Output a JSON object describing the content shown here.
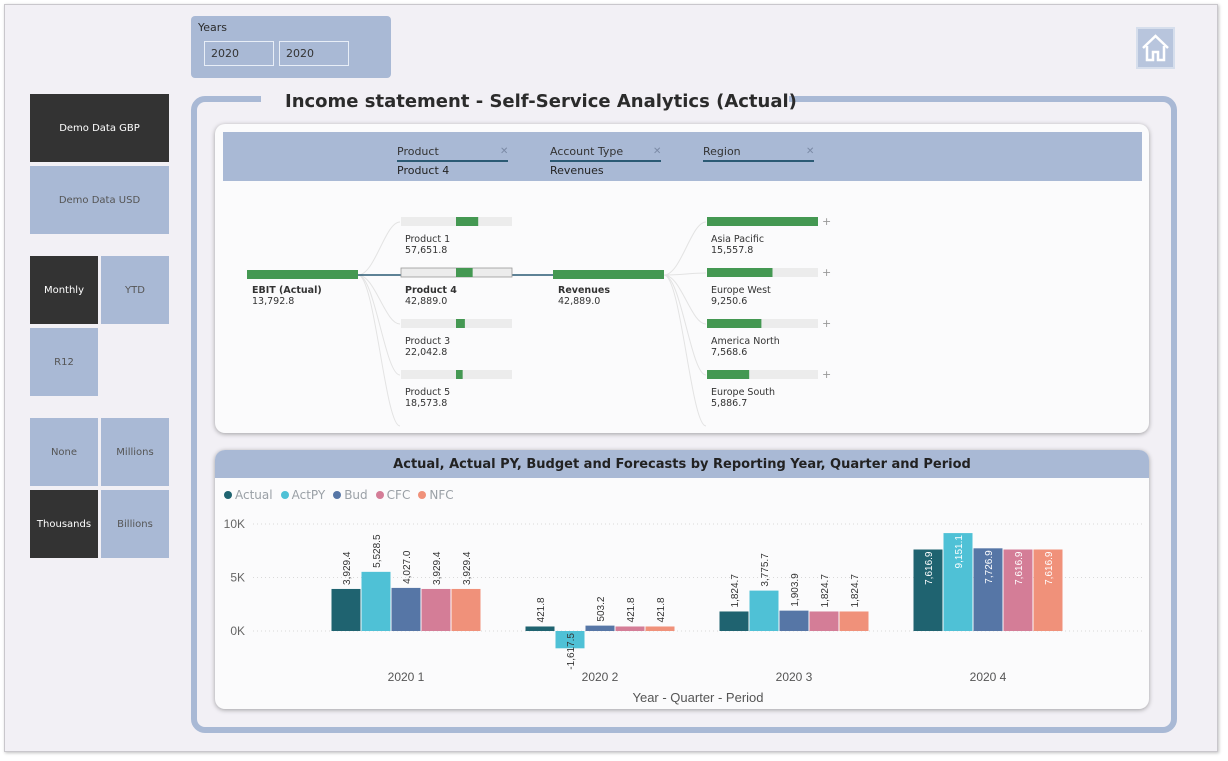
{
  "years_slicer": {
    "label": "Years",
    "from": "2020",
    "to": "2020"
  },
  "left_buttons": {
    "gbp": "Demo Data GBP",
    "usd": "Demo Data USD",
    "monthly": "Monthly",
    "ytd": "YTD",
    "r12": "R12",
    "none": "None",
    "millions": "Millions",
    "thousands": "Thousands",
    "billions": "Billions"
  },
  "page_title": "Income statement - Self-Service Analytics (Actual)",
  "tree": {
    "headers": [
      {
        "label": "Product",
        "value": "Product 4"
      },
      {
        "label": "Account Type",
        "value": "Revenues"
      },
      {
        "label": "Region",
        "value": ""
      }
    ],
    "root": {
      "label": "EBIT (Actual)",
      "value": "13,792.8"
    },
    "products": [
      {
        "label": "Product 1",
        "value": "57,651.8",
        "fraction": 0.2
      },
      {
        "label": "Product 4",
        "value": "42,889.0",
        "fraction": 0.15
      },
      {
        "label": "Product 3",
        "value": "22,042.8",
        "fraction": 0.08
      },
      {
        "label": "Product 5",
        "value": "18,573.8",
        "fraction": 0.06
      }
    ],
    "account": {
      "label": "Revenues",
      "value": "42,889.0"
    },
    "regions": [
      {
        "label": "Asia Pacific",
        "value": "15,557.8",
        "fraction": 1.0
      },
      {
        "label": "Europe West",
        "value": "9,250.6",
        "fraction": 0.59
      },
      {
        "label": "America North",
        "value": "7,568.6",
        "fraction": 0.49
      },
      {
        "label": "Europe South",
        "value": "5,886.7",
        "fraction": 0.38
      }
    ]
  },
  "colors": {
    "actual": "#1f6370",
    "actpy": "#4fc1d6",
    "bud": "#5676a6",
    "cfc": "#d47d97",
    "nfc": "#f0917a",
    "bar_green": "#449852"
  },
  "chart_data": {
    "type": "bar",
    "title": "Actual, Actual PY, Budget and Forecasts by Reporting Year, Quarter and Period",
    "xlabel": "Year - Quarter - Period",
    "ylabel": "",
    "categories": [
      "2020 1",
      "2020 2",
      "2020 3",
      "2020 4"
    ],
    "yticks": [
      "10K",
      "5K",
      "0K"
    ],
    "ylim": [
      -1900,
      10000
    ],
    "series": [
      {
        "name": "Actual",
        "values": [
          3929.4,
          421.8,
          1824.7,
          7616.9
        ],
        "labels": [
          "3,929.4",
          "421.8",
          "1,824.7",
          "7,616.9"
        ]
      },
      {
        "name": "ActPY",
        "values": [
          5528.5,
          -1617.5,
          3775.7,
          9151.1
        ],
        "labels": [
          "5,528.5",
          "-1,617.5",
          "3,775.7",
          "9,151.1"
        ]
      },
      {
        "name": "Bud",
        "values": [
          4027.0,
          503.2,
          1903.9,
          7726.9
        ],
        "labels": [
          "4,027.0",
          "503.2",
          "1,903.9",
          "7,726.9"
        ]
      },
      {
        "name": "CFC",
        "values": [
          3929.4,
          421.8,
          1824.7,
          7616.9
        ],
        "labels": [
          "3,929.4",
          "421.8",
          "1,824.7",
          "7,616.9"
        ]
      },
      {
        "name": "NFC",
        "values": [
          3929.4,
          421.8,
          1824.7,
          7616.9
        ],
        "labels": [
          "3,929.4",
          "421.8",
          "1,824.7",
          "7,616.9"
        ]
      }
    ],
    "grid": true,
    "legend": "top-left"
  }
}
